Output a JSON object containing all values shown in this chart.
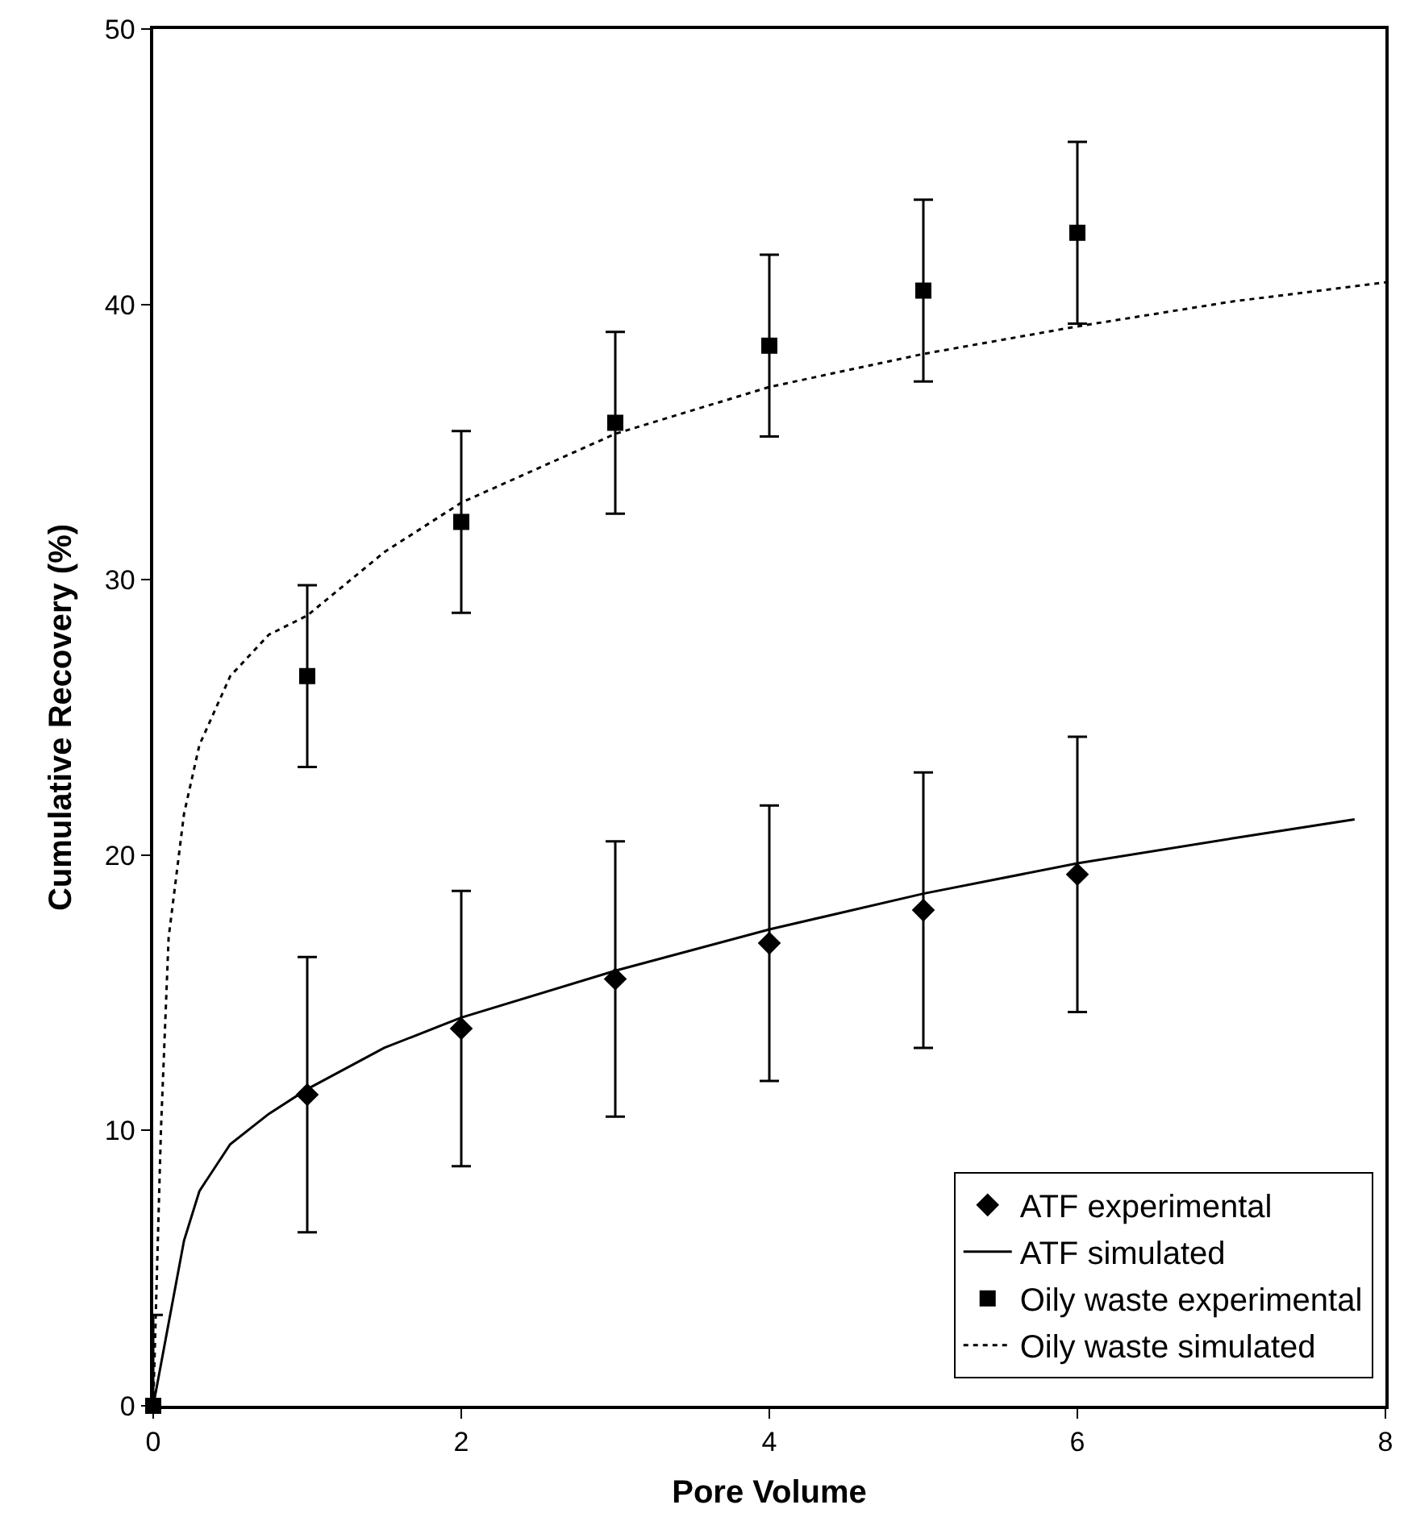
{
  "chart_data": {
    "type": "scatter",
    "xlabel": "Pore Volume",
    "ylabel": "Cumulative Recovery (%)",
    "xlim": [
      0,
      8
    ],
    "xticks": [
      0,
      2,
      4,
      6,
      8
    ],
    "ylim": [
      0,
      50
    ],
    "yticks": [
      0,
      10,
      20,
      30,
      40,
      50
    ],
    "grid": false,
    "legend": "bottom right",
    "series": [
      {
        "name": "ATF experimental",
        "marker": "diamond",
        "color": "#000000",
        "x": [
          1,
          2,
          3,
          4,
          5,
          6
        ],
        "values": [
          11.3,
          13.7,
          15.5,
          16.8,
          18.0,
          19.3
        ],
        "errors": [
          5,
          5,
          5,
          5,
          5,
          5
        ]
      },
      {
        "name": "ATF simulated",
        "type": "line",
        "marker": "none",
        "line_style": "solid",
        "color": "#000000",
        "x": [
          0,
          0.1,
          0.2,
          0.3,
          0.5,
          0.75,
          1,
          1.5,
          2,
          3,
          4,
          5,
          6,
          7,
          7.8
        ],
        "values": [
          0,
          3,
          6,
          7.8,
          9.5,
          10.6,
          11.5,
          13,
          14.1,
          15.8,
          17.3,
          18.6,
          19.7,
          20.6,
          21.3
        ]
      },
      {
        "name": "Oily waste experimental",
        "marker": "square",
        "color": "#000000",
        "x": [
          0,
          1,
          2,
          3,
          4,
          5,
          6
        ],
        "values": [
          0,
          26.5,
          32.1,
          35.7,
          38.5,
          40.5,
          42.6
        ],
        "errors": [
          3.3,
          3.3,
          3.3,
          3.3,
          3.3,
          3.3,
          3.3
        ]
      },
      {
        "name": "Oily waste simulated",
        "type": "line",
        "marker": "none",
        "line_style": "dotted",
        "color": "#000000",
        "x": [
          0,
          0.05,
          0.1,
          0.2,
          0.3,
          0.5,
          0.75,
          1,
          1.5,
          2,
          3,
          4,
          5,
          6,
          7,
          8
        ],
        "values": [
          0,
          10,
          17,
          21.5,
          24,
          26.5,
          28,
          28.7,
          31,
          32.8,
          35.3,
          37,
          38.2,
          39.2,
          40.1,
          40.8
        ]
      }
    ]
  }
}
